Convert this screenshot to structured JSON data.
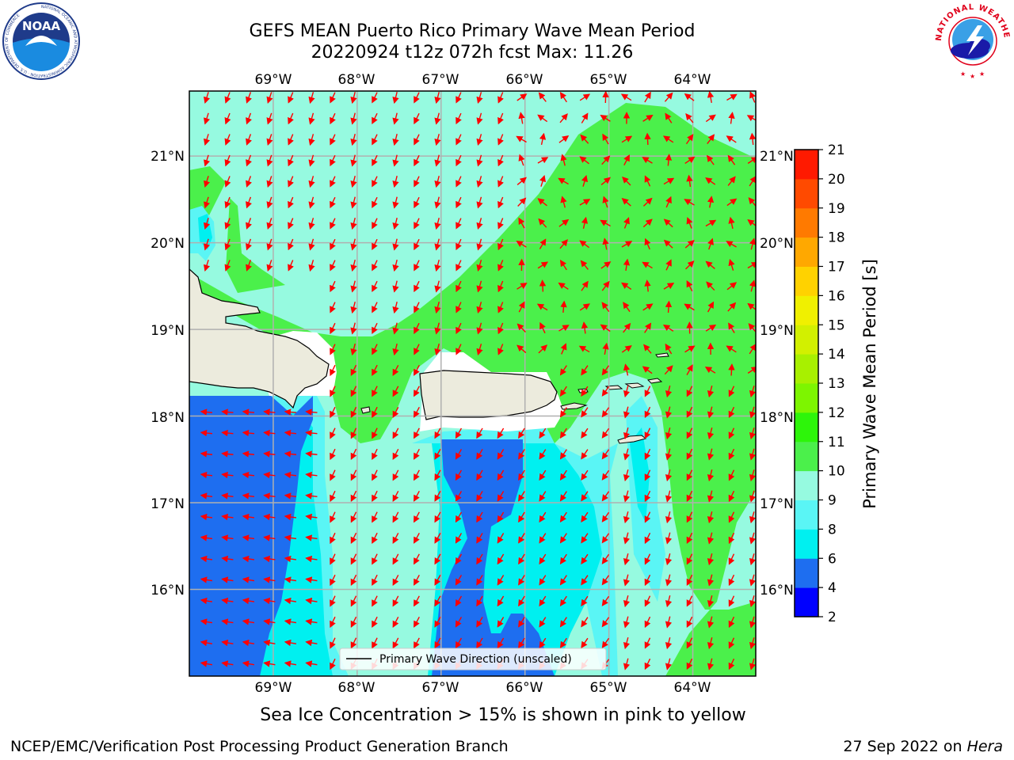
{
  "header": {
    "title_line1": "GEFS MEAN Puerto Rico Primary Wave Mean Period",
    "title_line2": "20220924 t12z 072h fcst   Max: 11.26"
  },
  "logos": {
    "left_icon": "noaa-logo-icon",
    "left_text": "NOAA",
    "left_ring_text": "NATIONAL OCEANIC AND ATMOSPHERIC ADMINISTRATION · U.S. DEPARTMENT OF COMMERCE",
    "right_icon": "national-weather-service-logo-icon",
    "right_ring_text": "NATIONAL WEATHER SERVICE"
  },
  "map": {
    "lon_labels": [
      "69°W",
      "68°W",
      "67°W",
      "66°W",
      "65°W",
      "64°W"
    ],
    "lat_labels": [
      "21°N",
      "20°N",
      "19°N",
      "18°N",
      "17°N",
      "16°N"
    ],
    "lon_range": [
      -70.0,
      -63.25
    ],
    "lat_range": [
      15.0,
      21.75
    ],
    "legend_label": "Primary Wave Direction (unscaled)"
  },
  "colorbar": {
    "label": "Primary Wave Mean Period [s]",
    "ticks": [
      "2",
      "4",
      "6",
      "8",
      "9",
      "10",
      "11",
      "12",
      "13",
      "14",
      "15",
      "16",
      "17",
      "18",
      "19",
      "20",
      "21"
    ],
    "colors": [
      "#0000ff",
      "#1e6ef0",
      "#00f0f0",
      "#5af5f5",
      "#96fae0",
      "#4bf04b",
      "#2df50a",
      "#7df500",
      "#a8f000",
      "#d2f000",
      "#f0f000",
      "#ffd200",
      "#ffa800",
      "#ff7a00",
      "#ff4a00",
      "#ff1a00"
    ]
  },
  "colors": {
    "land": "#ecebdd",
    "arrows": "#ff0000",
    "grid": "#b0b0b0"
  },
  "subtitle": "Sea Ice Concentration > 15% is shown in pink to yellow",
  "footer": {
    "left": "NCEP/EMC/Verification Post Processing Product Generation Branch",
    "right_prefix": "27 Sep 2022 on ",
    "right_machine": "Hera"
  }
}
